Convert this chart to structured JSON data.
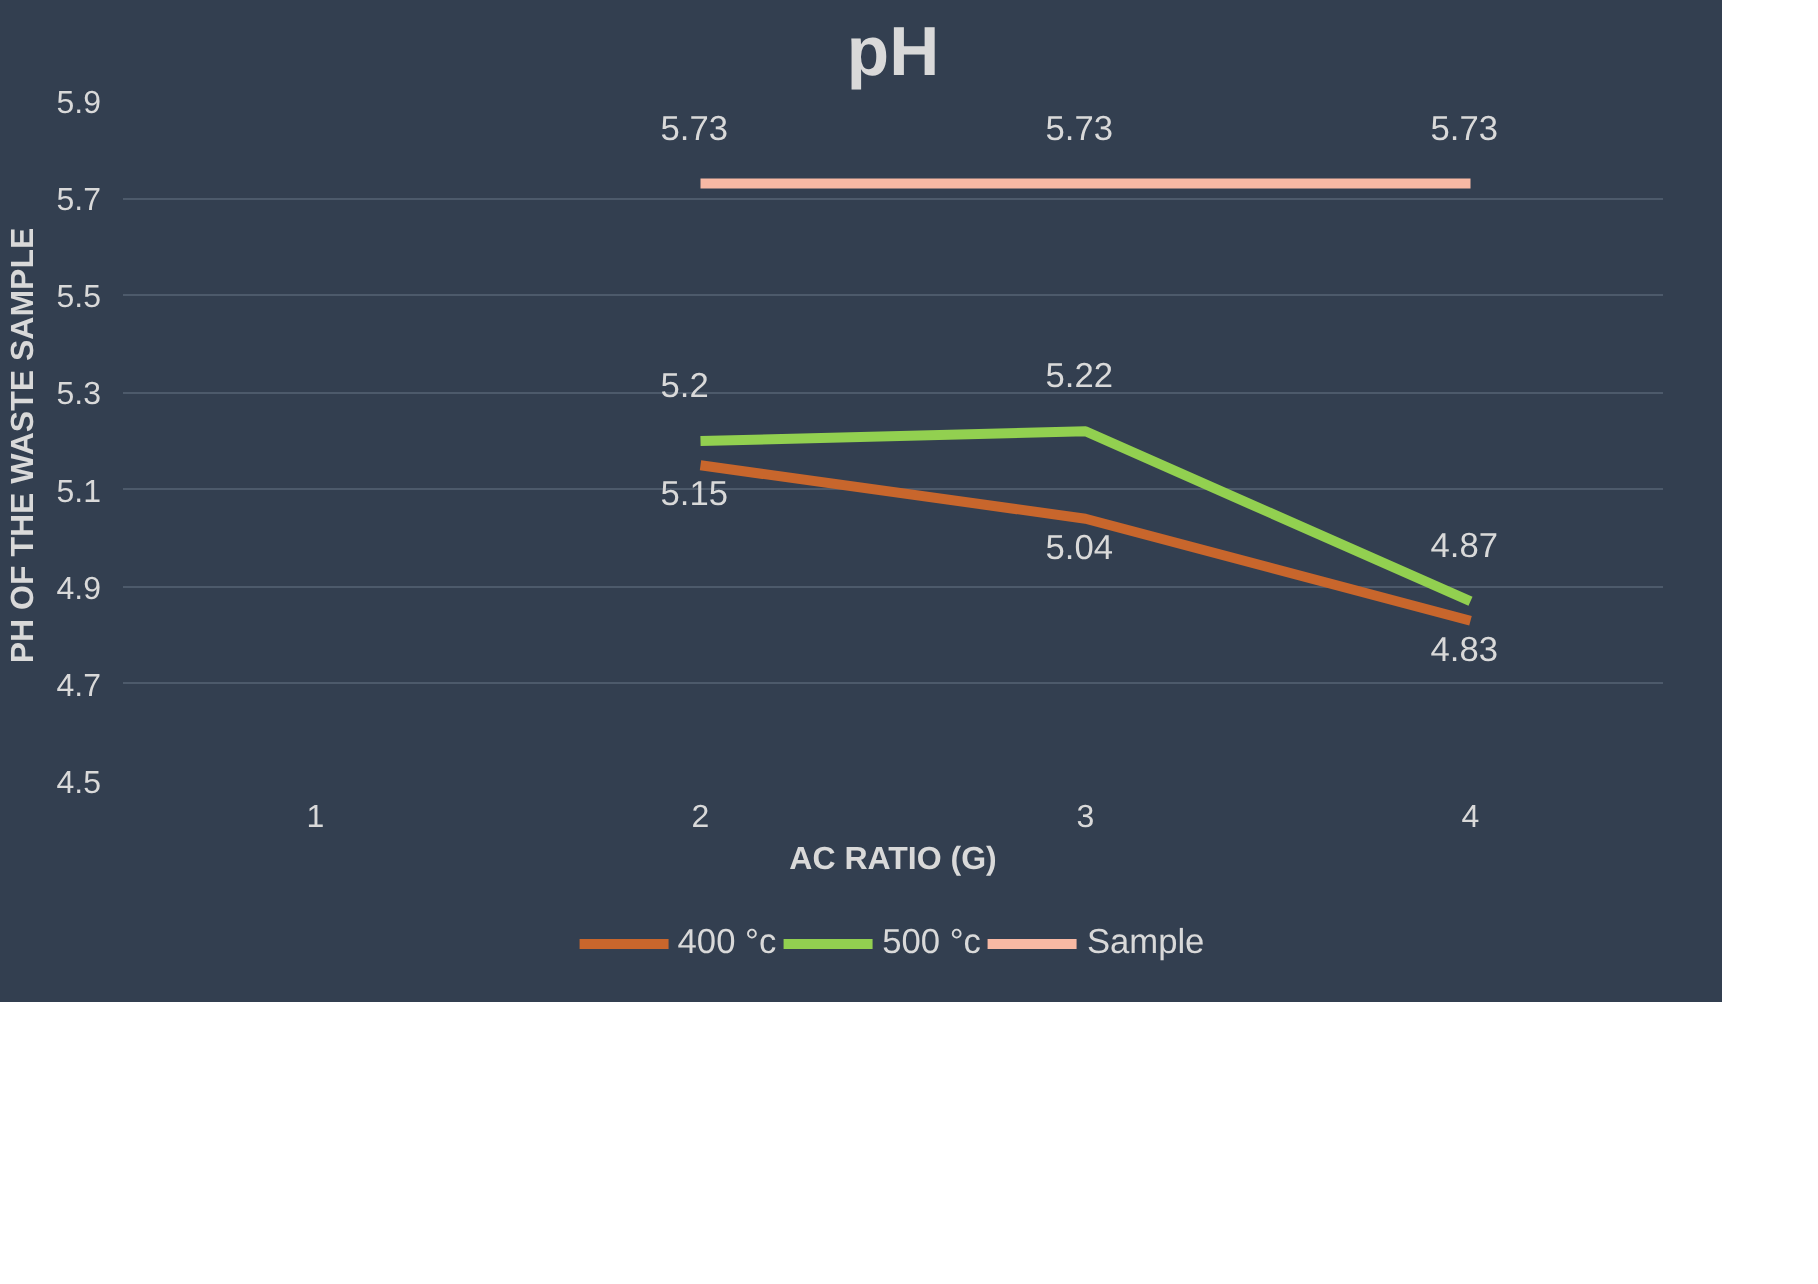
{
  "chart_data": {
    "type": "line",
    "title": "pH",
    "xlabel": "AC RATIO (G)",
    "ylabel": "PH OF THE  WASTE SAMPLE",
    "categories": [
      "1",
      "2",
      "3",
      "4"
    ],
    "series": [
      {
        "name": "400 °c",
        "color": "#c8662c",
        "values": [
          null,
          5.15,
          5.04,
          4.83
        ]
      },
      {
        "name": "500 °c",
        "color": "#92d050",
        "values": [
          null,
          5.2,
          5.22,
          4.87
        ]
      },
      {
        "name": "Sample",
        "color": "#f8b9a4",
        "values": [
          null,
          5.73,
          5.73,
          5.73
        ]
      }
    ],
    "ylim": [
      4.5,
      5.9
    ],
    "yticks": [
      4.5,
      4.7,
      4.9,
      5.1,
      5.3,
      5.5,
      5.7,
      5.9
    ],
    "grid": "y",
    "legend": "bottom",
    "data_labels": true,
    "marker": "none",
    "line_style": "solid"
  }
}
